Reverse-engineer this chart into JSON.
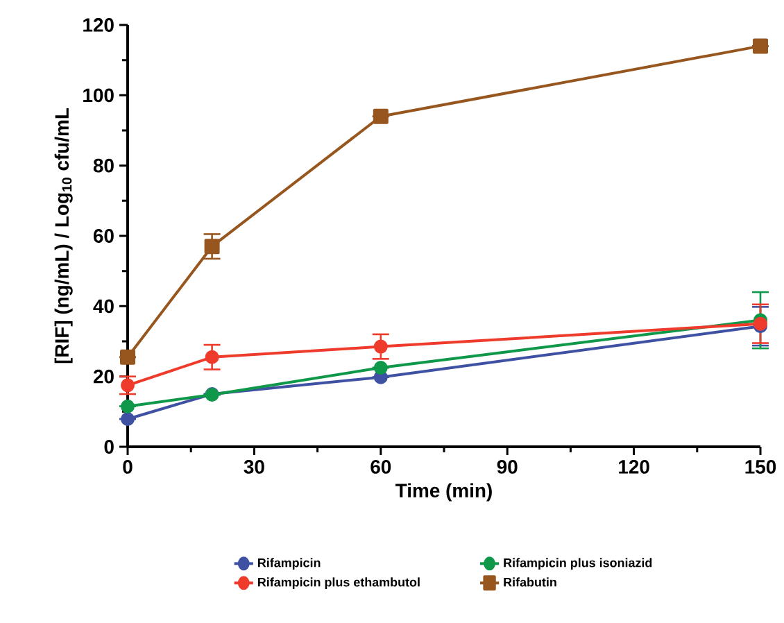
{
  "chart_data": {
    "type": "line",
    "xlabel": "Time (min)",
    "ylabel": "[RIF] (ng/mL) / Log$_{10}$ cfu/mL",
    "x": [
      0,
      20,
      60,
      150
    ],
    "xlim": [
      0,
      150
    ],
    "xticks": [
      0,
      30,
      60,
      90,
      120,
      150
    ],
    "ylim": [
      0,
      120
    ],
    "yticks": [
      0,
      20,
      40,
      60,
      80,
      100,
      120
    ],
    "grid": false,
    "legend": "bottom",
    "line_style": "solid",
    "series": [
      {
        "name": "Rifampicin",
        "color": "#3f51a3",
        "marker": "circle",
        "values": [
          7.9,
          15,
          19.8,
          34.3
        ],
        "errors": [
          null,
          null,
          null,
          5.5
        ]
      },
      {
        "name": "Rifampicin plus isoniazid",
        "color": "#10984a",
        "marker": "circle",
        "values": [
          11.5,
          14.8,
          22.5,
          36
        ],
        "errors": [
          null,
          null,
          null,
          8
        ]
      },
      {
        "name": "Rifampicin plus ethambutol",
        "color": "#ee3b2b",
        "marker": "circle",
        "values": [
          17.5,
          25.5,
          28.5,
          35
        ],
        "errors": [
          2.5,
          3.5,
          3.5,
          5.5
        ]
      },
      {
        "name": "Rifabutin",
        "color": "#98561f",
        "marker": "square",
        "values": [
          25.5,
          57,
          94,
          114
        ],
        "errors": [
          null,
          3.5,
          null,
          null
        ]
      }
    ]
  }
}
